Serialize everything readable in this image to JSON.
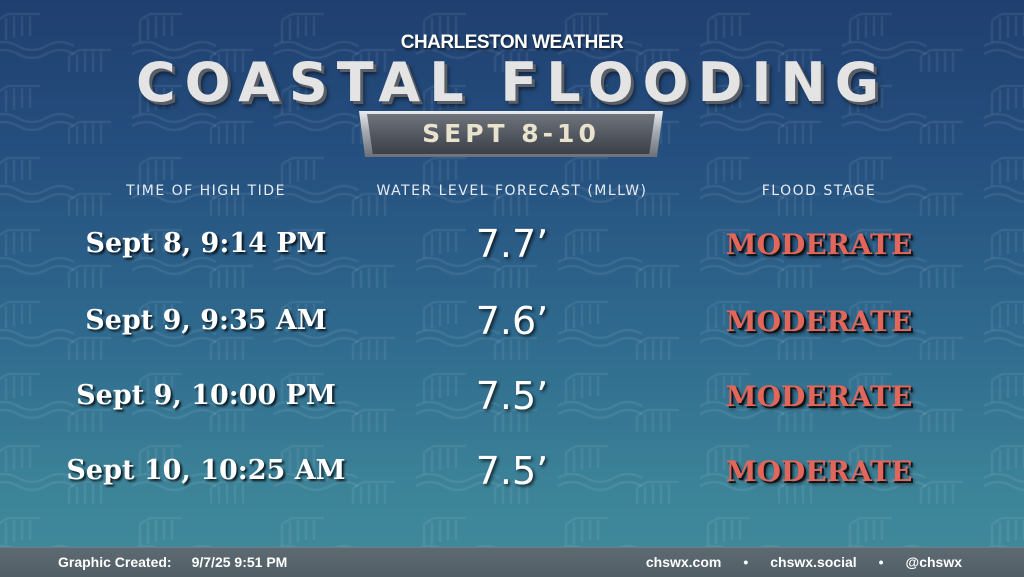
{
  "header": {
    "station": "CHARLESTON WEATHER",
    "title": "COASTAL FLOODING",
    "date_range": "SEPT 8-10"
  },
  "table": {
    "columns": [
      "TIME OF HIGH TIDE",
      "WATER LEVEL FORECAST (MLLW)",
      "FLOOD STAGE"
    ],
    "rows": [
      {
        "time": "Sept 8, 9:14 PM",
        "level": "7.7’",
        "stage": "MODERATE"
      },
      {
        "time": "Sept 9, 9:35 AM",
        "level": "7.6’",
        "stage": "MODERATE"
      },
      {
        "time": "Sept 9, 10:00 PM",
        "level": "7.5’",
        "stage": "MODERATE"
      },
      {
        "time": "Sept 10, 10:25 AM",
        "level": "7.5’",
        "stage": "MODERATE"
      }
    ]
  },
  "footer": {
    "created_label": "Graphic Created:",
    "created_value": "9/7/25 9:51 PM",
    "links": [
      "chswx.com",
      "chswx.social",
      "@chswx"
    ],
    "separator": "•"
  },
  "colors": {
    "background_top": "#1f3f70",
    "background_bottom": "#418b9c",
    "flood_stage": "#e3665a",
    "footer_bar": "#56636b"
  },
  "icons": [
    "tide-gauge-icon"
  ]
}
